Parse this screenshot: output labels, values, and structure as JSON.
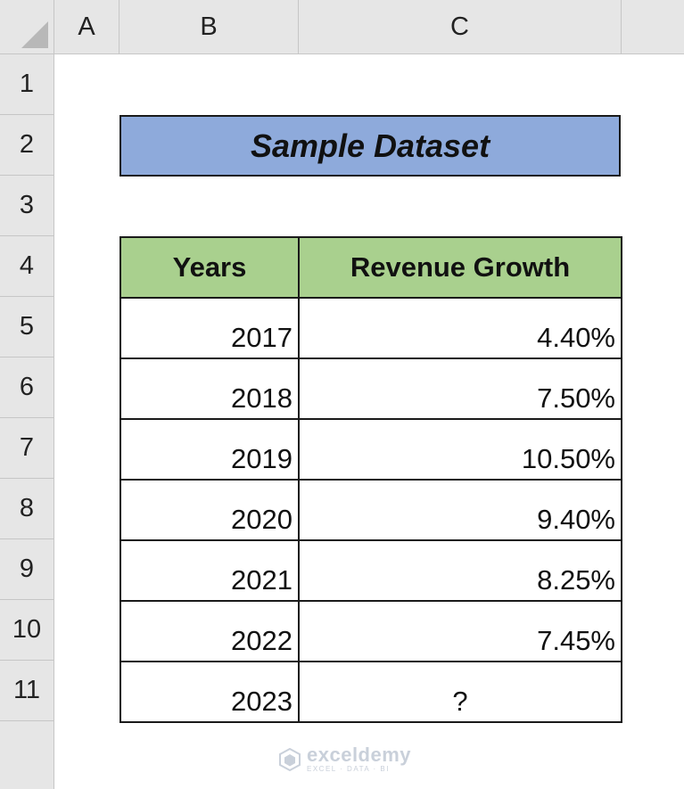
{
  "columns": [
    "A",
    "B",
    "C"
  ],
  "rows": [
    "1",
    "2",
    "3",
    "4",
    "5",
    "6",
    "7",
    "8",
    "9",
    "10",
    "11"
  ],
  "title": "Sample Dataset",
  "table": {
    "headers": [
      "Years",
      "Revenue Growth"
    ],
    "rows": [
      {
        "year": "2017",
        "growth": "4.40%"
      },
      {
        "year": "2018",
        "growth": "7.50%"
      },
      {
        "year": "2019",
        "growth": "10.50%"
      },
      {
        "year": "2020",
        "growth": "9.40%"
      },
      {
        "year": "2021",
        "growth": "8.25%"
      },
      {
        "year": "2022",
        "growth": "7.45%"
      },
      {
        "year": "2023",
        "growth": "?"
      }
    ]
  },
  "watermark": {
    "name": "exceldemy",
    "tagline": "EXCEL · DATA · BI"
  },
  "colors": {
    "title_fill": "#8eaadb",
    "header_fill": "#a9d08e",
    "grid_header": "#e6e6e6"
  }
}
